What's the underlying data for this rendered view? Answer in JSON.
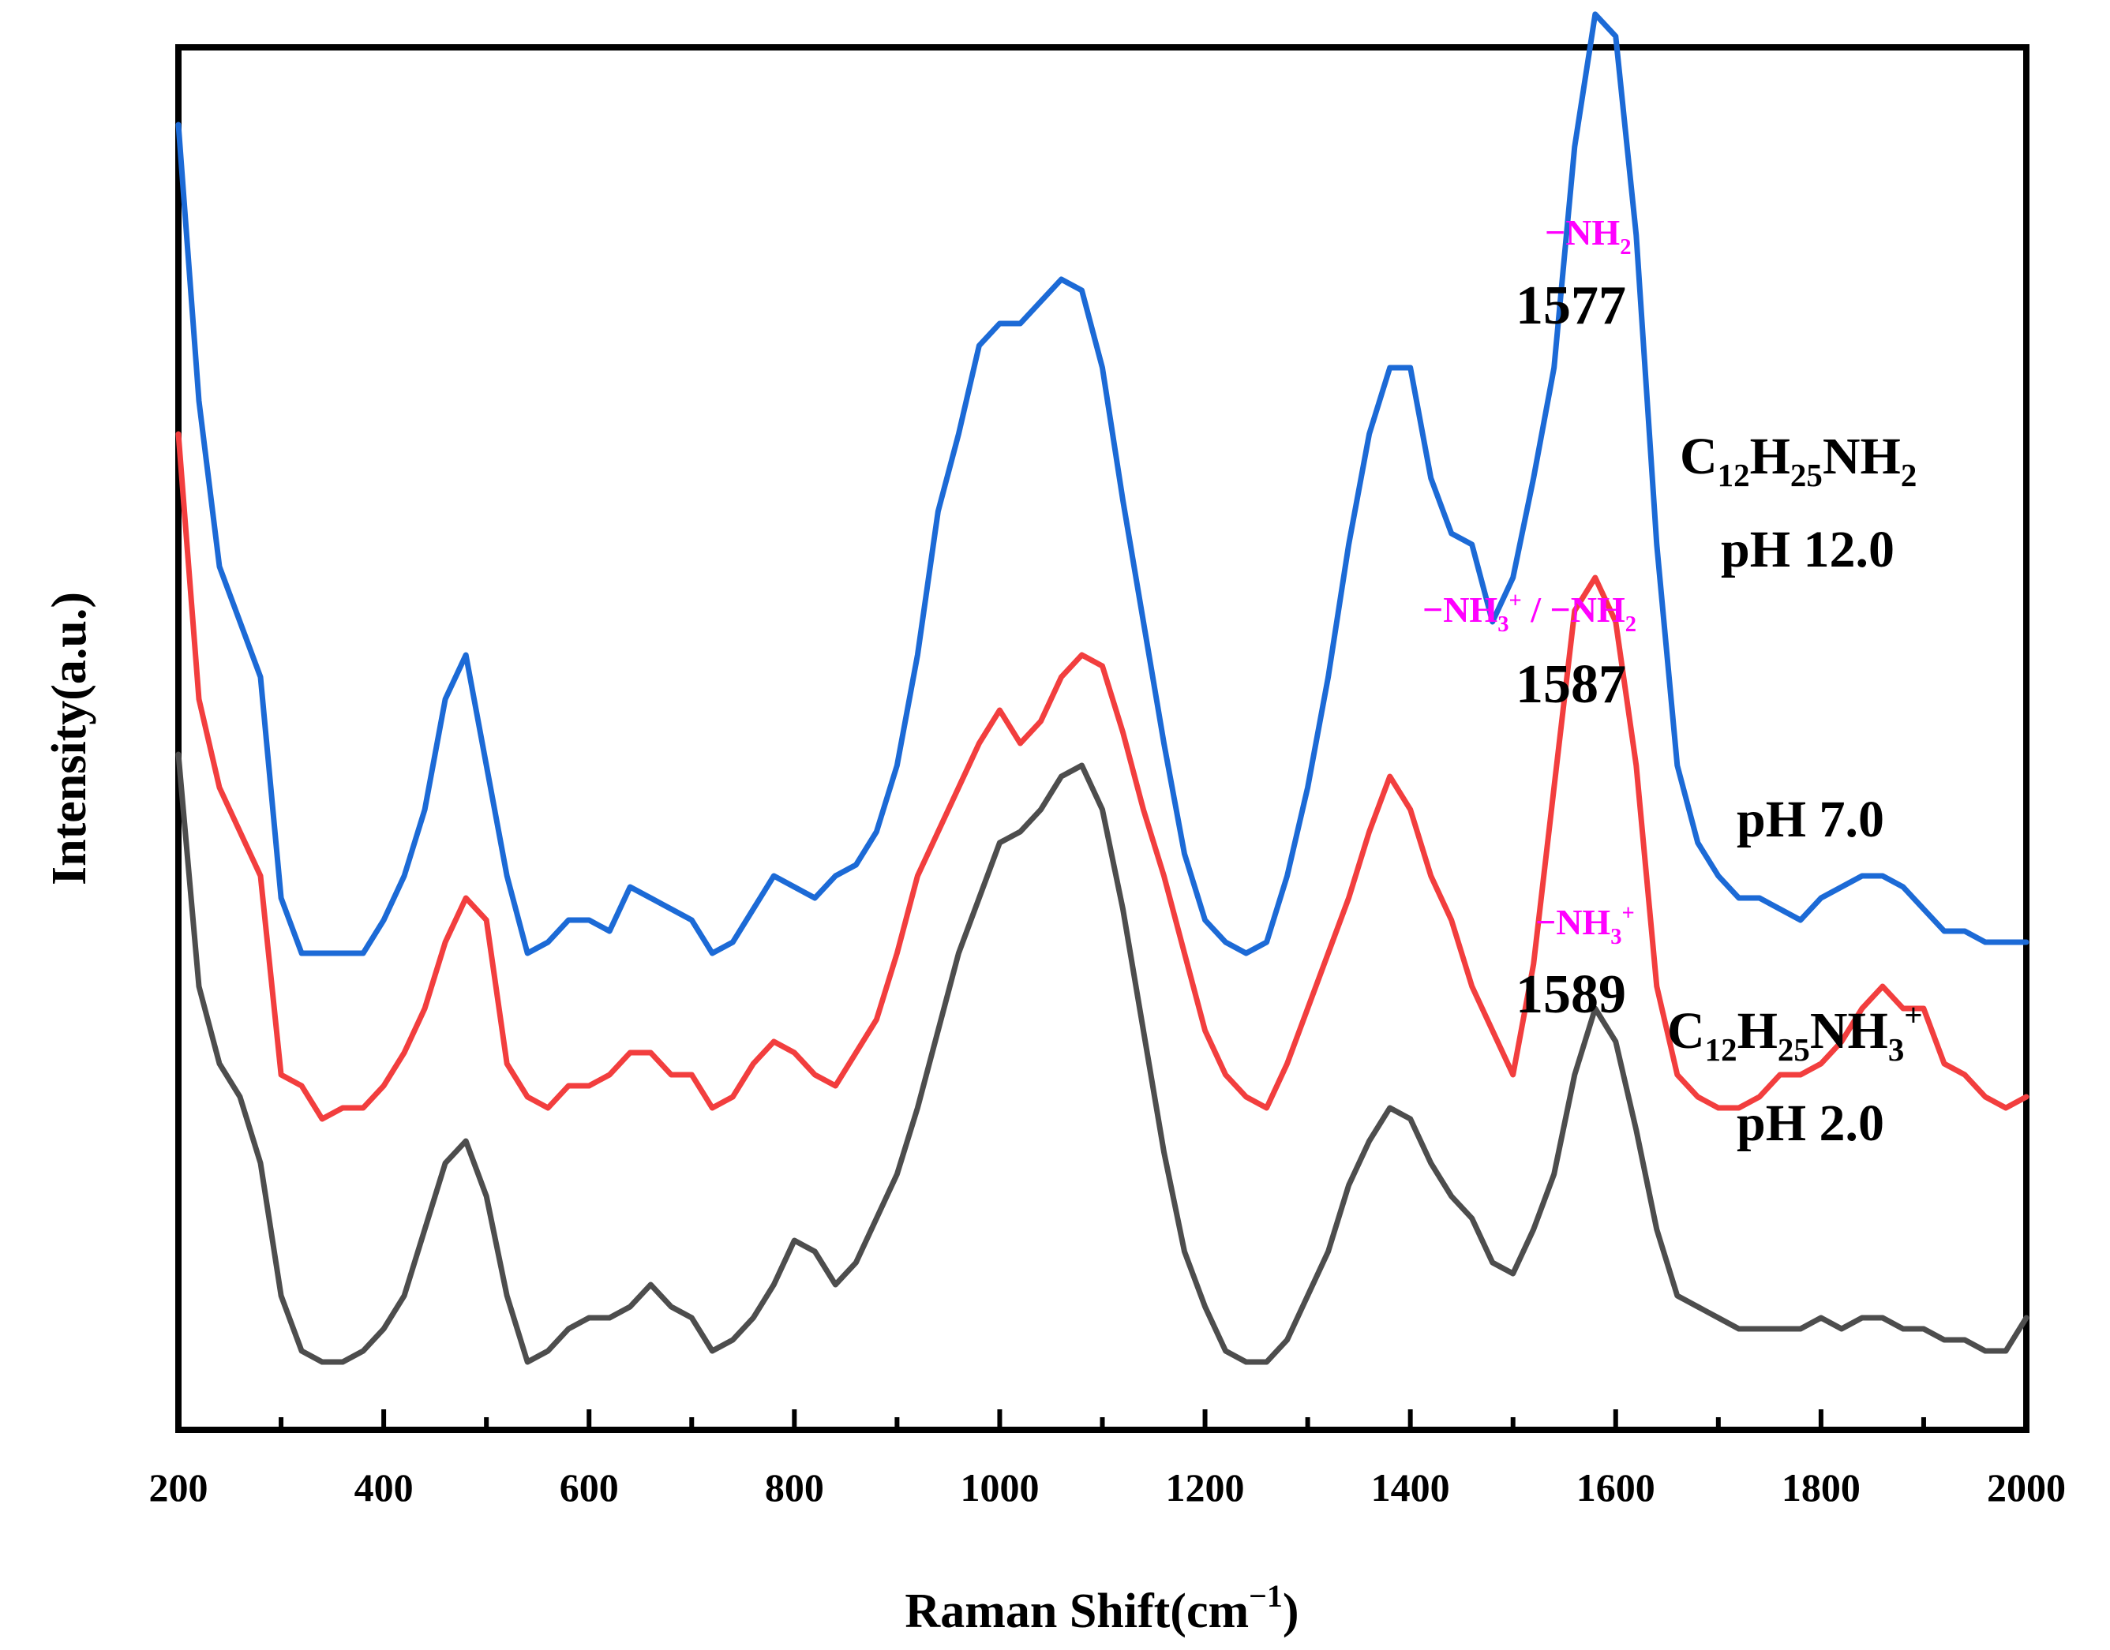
{
  "chart_data": {
    "type": "line",
    "title": "",
    "xlabel": "Raman Shift(cm",
    "xlabel_sup": "−1",
    "xlabel_close": ")",
    "ylabel": "Intensity(a.u.)",
    "xlim": [
      200,
      2000
    ],
    "xticks": [
      "200",
      "400",
      "600",
      "800",
      "1000",
      "1200",
      "1400",
      "1600",
      "1800",
      "2000"
    ],
    "grid": false,
    "y_ticks_shown": false,
    "series": [
      {
        "name": "C12H25NH2 pH 12.0",
        "color": "#1c6ad6",
        "label_formula": {
          "base": "C",
          "s1": "12",
          "mid": "H",
          "s2": "25",
          "end": "NH",
          "s3": "2"
        },
        "label_ph": "pH 12.0",
        "peak": "1577",
        "assignment": {
          "base": "−NH",
          "sub": "2",
          "sup": ""
        },
        "x": [
          200,
          220,
          240,
          260,
          280,
          300,
          320,
          340,
          360,
          380,
          400,
          420,
          440,
          460,
          480,
          500,
          520,
          540,
          560,
          580,
          600,
          620,
          640,
          660,
          680,
          700,
          720,
          740,
          760,
          780,
          800,
          820,
          840,
          860,
          880,
          900,
          920,
          940,
          960,
          980,
          1000,
          1020,
          1040,
          1060,
          1080,
          1100,
          1120,
          1140,
          1160,
          1180,
          1200,
          1220,
          1240,
          1260,
          1280,
          1300,
          1320,
          1340,
          1360,
          1380,
          1400,
          1420,
          1440,
          1460,
          1480,
          1500,
          1520,
          1540,
          1560,
          1580,
          1600,
          1620,
          1640,
          1660,
          1680,
          1700,
          1720,
          1740,
          1760,
          1780,
          1800,
          1820,
          1840,
          1860,
          1880,
          1900,
          1920,
          1940,
          1960,
          1980,
          2000
        ],
        "y": [
          1.3,
          1.05,
          0.9,
          0.85,
          0.8,
          0.6,
          0.55,
          0.55,
          0.55,
          0.55,
          0.58,
          0.62,
          0.68,
          0.78,
          0.82,
          0.72,
          0.62,
          0.55,
          0.56,
          0.58,
          0.58,
          0.57,
          0.61,
          0.6,
          0.59,
          0.58,
          0.55,
          0.56,
          0.59,
          0.62,
          0.61,
          0.6,
          0.62,
          0.63,
          0.66,
          0.72,
          0.82,
          0.95,
          1.02,
          1.1,
          1.12,
          1.12,
          1.14,
          1.16,
          1.15,
          1.08,
          0.96,
          0.85,
          0.74,
          0.64,
          0.58,
          0.56,
          0.55,
          0.56,
          0.62,
          0.7,
          0.8,
          0.92,
          1.02,
          1.08,
          1.08,
          0.98,
          0.93,
          0.92,
          0.85,
          0.89,
          0.98,
          1.08,
          1.28,
          1.4,
          1.38,
          1.2,
          0.92,
          0.72,
          0.65,
          0.62,
          0.6,
          0.6,
          0.59,
          0.58,
          0.6,
          0.61,
          0.62,
          0.62,
          0.61,
          0.59,
          0.57,
          0.57,
          0.56,
          0.56,
          0.56
        ]
      },
      {
        "name": "pH 7.0",
        "color": "#f23e3e",
        "label_ph": "pH 7.0",
        "peak": "1587",
        "assignment": {
          "base": "−NH",
          "sub": "3",
          "sup": "+",
          "rest": " / −NH",
          "sub2": "2"
        },
        "x": [
          200,
          220,
          240,
          260,
          280,
          300,
          320,
          340,
          360,
          380,
          400,
          420,
          440,
          460,
          480,
          500,
          520,
          540,
          560,
          580,
          600,
          620,
          640,
          660,
          680,
          700,
          720,
          740,
          760,
          780,
          800,
          820,
          840,
          860,
          880,
          900,
          920,
          940,
          960,
          980,
          1000,
          1020,
          1040,
          1060,
          1080,
          1100,
          1120,
          1140,
          1160,
          1180,
          1200,
          1220,
          1240,
          1260,
          1280,
          1300,
          1320,
          1340,
          1360,
          1380,
          1400,
          1420,
          1440,
          1460,
          1480,
          1500,
          1520,
          1540,
          1560,
          1580,
          1600,
          1620,
          1640,
          1660,
          1680,
          1700,
          1720,
          1740,
          1760,
          1780,
          1800,
          1820,
          1840,
          1860,
          1880,
          1900,
          1920,
          1940,
          1960,
          1980,
          2000
        ],
        "y": [
          1.02,
          0.78,
          0.7,
          0.66,
          0.62,
          0.44,
          0.43,
          0.4,
          0.41,
          0.41,
          0.43,
          0.46,
          0.5,
          0.56,
          0.6,
          0.58,
          0.45,
          0.42,
          0.41,
          0.43,
          0.43,
          0.44,
          0.46,
          0.46,
          0.44,
          0.44,
          0.41,
          0.42,
          0.45,
          0.47,
          0.46,
          0.44,
          0.43,
          0.46,
          0.49,
          0.55,
          0.62,
          0.66,
          0.7,
          0.74,
          0.77,
          0.74,
          0.76,
          0.8,
          0.82,
          0.81,
          0.75,
          0.68,
          0.62,
          0.55,
          0.48,
          0.44,
          0.42,
          0.41,
          0.45,
          0.5,
          0.55,
          0.6,
          0.66,
          0.71,
          0.68,
          0.62,
          0.58,
          0.52,
          0.48,
          0.44,
          0.54,
          0.7,
          0.86,
          0.89,
          0.85,
          0.72,
          0.52,
          0.44,
          0.42,
          0.41,
          0.41,
          0.42,
          0.44,
          0.44,
          0.45,
          0.47,
          0.5,
          0.52,
          0.5,
          0.5,
          0.45,
          0.44,
          0.42,
          0.41,
          0.42
        ]
      },
      {
        "name": "C12H25NH3+ pH 2.0",
        "color": "#4d4d4d",
        "label_formula": {
          "base": "C",
          "s1": "12",
          "mid": "H",
          "s2": "25",
          "end": "NH",
          "s3": "3",
          "sup": "+"
        },
        "label_ph": "pH 2.0",
        "peak": "1589",
        "assignment": {
          "base": "−NH",
          "sub": "3",
          "sup": "+"
        },
        "x": [
          200,
          220,
          240,
          260,
          280,
          300,
          320,
          340,
          360,
          380,
          400,
          420,
          440,
          460,
          480,
          500,
          520,
          540,
          560,
          580,
          600,
          620,
          640,
          660,
          680,
          700,
          720,
          740,
          760,
          780,
          800,
          820,
          840,
          860,
          880,
          900,
          920,
          940,
          960,
          980,
          1000,
          1020,
          1040,
          1060,
          1080,
          1100,
          1120,
          1140,
          1160,
          1180,
          1200,
          1220,
          1240,
          1260,
          1280,
          1300,
          1320,
          1340,
          1360,
          1380,
          1400,
          1420,
          1440,
          1460,
          1480,
          1500,
          1520,
          1540,
          1560,
          1580,
          1600,
          1620,
          1640,
          1660,
          1680,
          1700,
          1720,
          1740,
          1760,
          1780,
          1800,
          1820,
          1840,
          1860,
          1880,
          1900,
          1920,
          1940,
          1960,
          1980,
          2000
        ],
        "y": [
          0.73,
          0.52,
          0.45,
          0.42,
          0.36,
          0.24,
          0.19,
          0.18,
          0.18,
          0.19,
          0.21,
          0.24,
          0.3,
          0.36,
          0.38,
          0.33,
          0.24,
          0.18,
          0.19,
          0.21,
          0.22,
          0.22,
          0.23,
          0.25,
          0.23,
          0.22,
          0.19,
          0.2,
          0.22,
          0.25,
          0.29,
          0.28,
          0.25,
          0.27,
          0.31,
          0.35,
          0.41,
          0.48,
          0.55,
          0.6,
          0.65,
          0.66,
          0.68,
          0.71,
          0.72,
          0.68,
          0.59,
          0.48,
          0.37,
          0.28,
          0.23,
          0.19,
          0.18,
          0.18,
          0.2,
          0.24,
          0.28,
          0.34,
          0.38,
          0.41,
          0.4,
          0.36,
          0.33,
          0.31,
          0.27,
          0.26,
          0.3,
          0.35,
          0.44,
          0.5,
          0.47,
          0.39,
          0.3,
          0.24,
          0.23,
          0.22,
          0.21,
          0.21,
          0.21,
          0.21,
          0.22,
          0.21,
          0.22,
          0.22,
          0.21,
          0.21,
          0.2,
          0.2,
          0.19,
          0.19,
          0.22
        ]
      }
    ]
  }
}
